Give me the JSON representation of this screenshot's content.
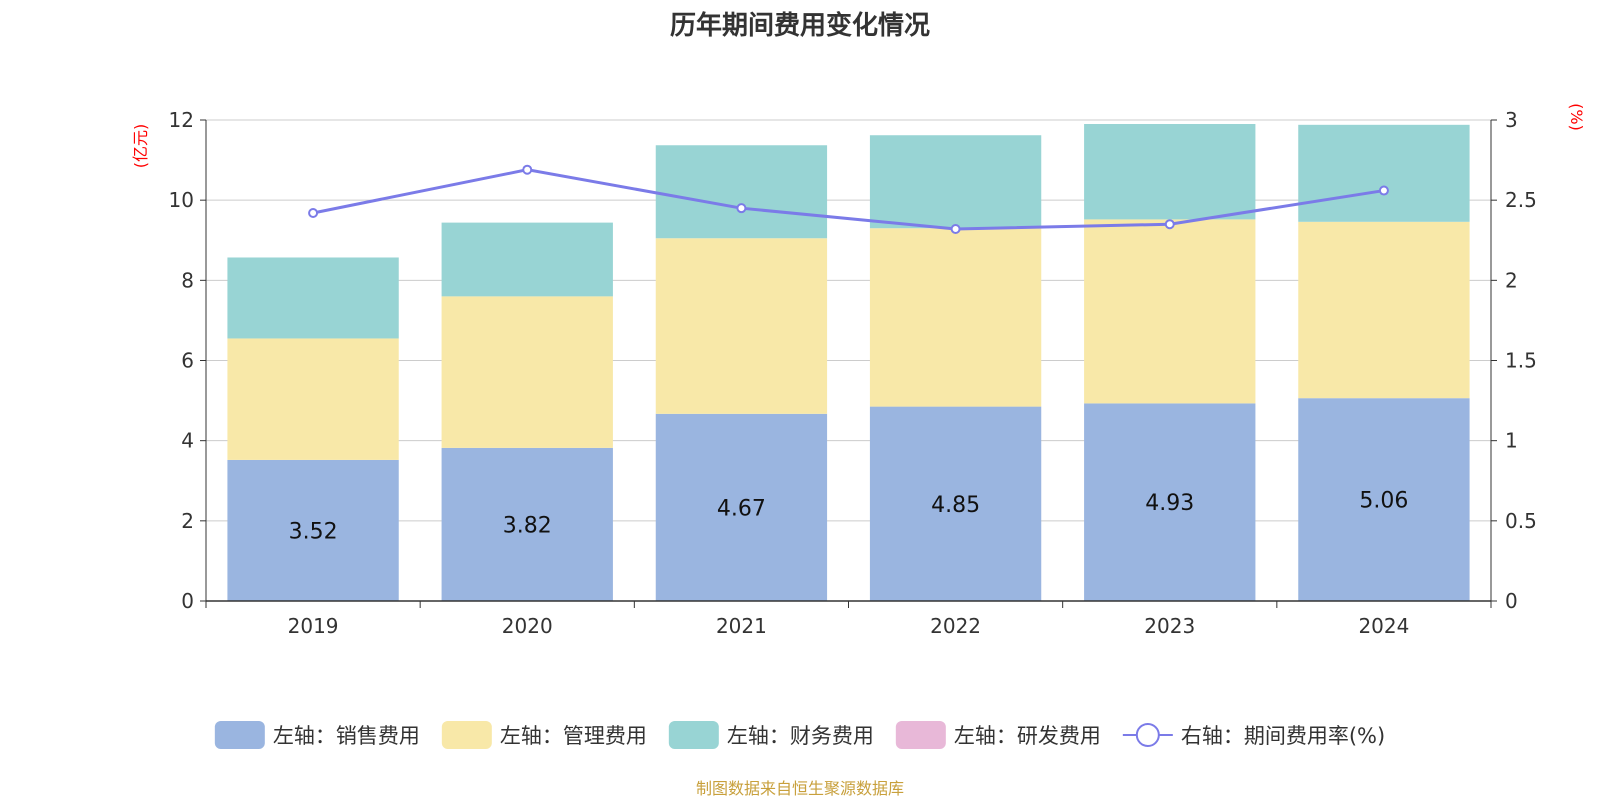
{
  "chart_data": {
    "type": "bar",
    "title": "历年期间费用变化情况",
    "categories": [
      "2019",
      "2020",
      "2021",
      "2022",
      "2023",
      "2024"
    ],
    "left_axis": {
      "unit": "(亿元)",
      "ylim": [
        0,
        12
      ],
      "ticks": [
        "0",
        "2",
        "4",
        "6",
        "8",
        "10",
        "12"
      ]
    },
    "right_axis": {
      "unit": "(%)",
      "ylim": [
        0,
        3
      ],
      "ticks": [
        "0",
        "0.5",
        "1",
        "1.5",
        "2",
        "2.5",
        "3"
      ]
    },
    "series": [
      {
        "name": "左轴：销售费用",
        "type": "bar",
        "axis": "left",
        "color": "#9ab5e0",
        "values": [
          3.52,
          3.82,
          4.67,
          4.85,
          4.93,
          5.06
        ],
        "labels": [
          "3.52",
          "3.82",
          "4.67",
          "4.85",
          "4.93",
          "5.06"
        ]
      },
      {
        "name": "左轴：管理费用",
        "type": "bar",
        "axis": "left",
        "color": "#f8e8a8",
        "values": [
          3.03,
          3.78,
          4.38,
          4.45,
          4.59,
          4.4
        ]
      },
      {
        "name": "左轴：财务费用",
        "type": "bar",
        "axis": "left",
        "color": "#98d4d4",
        "values": [
          2.02,
          1.84,
          2.32,
          2.32,
          2.38,
          2.42
        ]
      },
      {
        "name": "左轴：研发费用",
        "type": "bar",
        "axis": "left",
        "color": "#e8b8d8",
        "values": [
          0,
          0,
          0,
          0,
          0,
          0
        ]
      },
      {
        "name": "右轴：期间费用率(%)",
        "type": "line",
        "axis": "right",
        "color": "#7b7be8",
        "values": [
          2.42,
          2.69,
          2.45,
          2.32,
          2.35,
          2.56
        ]
      }
    ],
    "grid": true,
    "legend_position": "bottom"
  },
  "source": "制图数据来自恒生聚源数据库"
}
